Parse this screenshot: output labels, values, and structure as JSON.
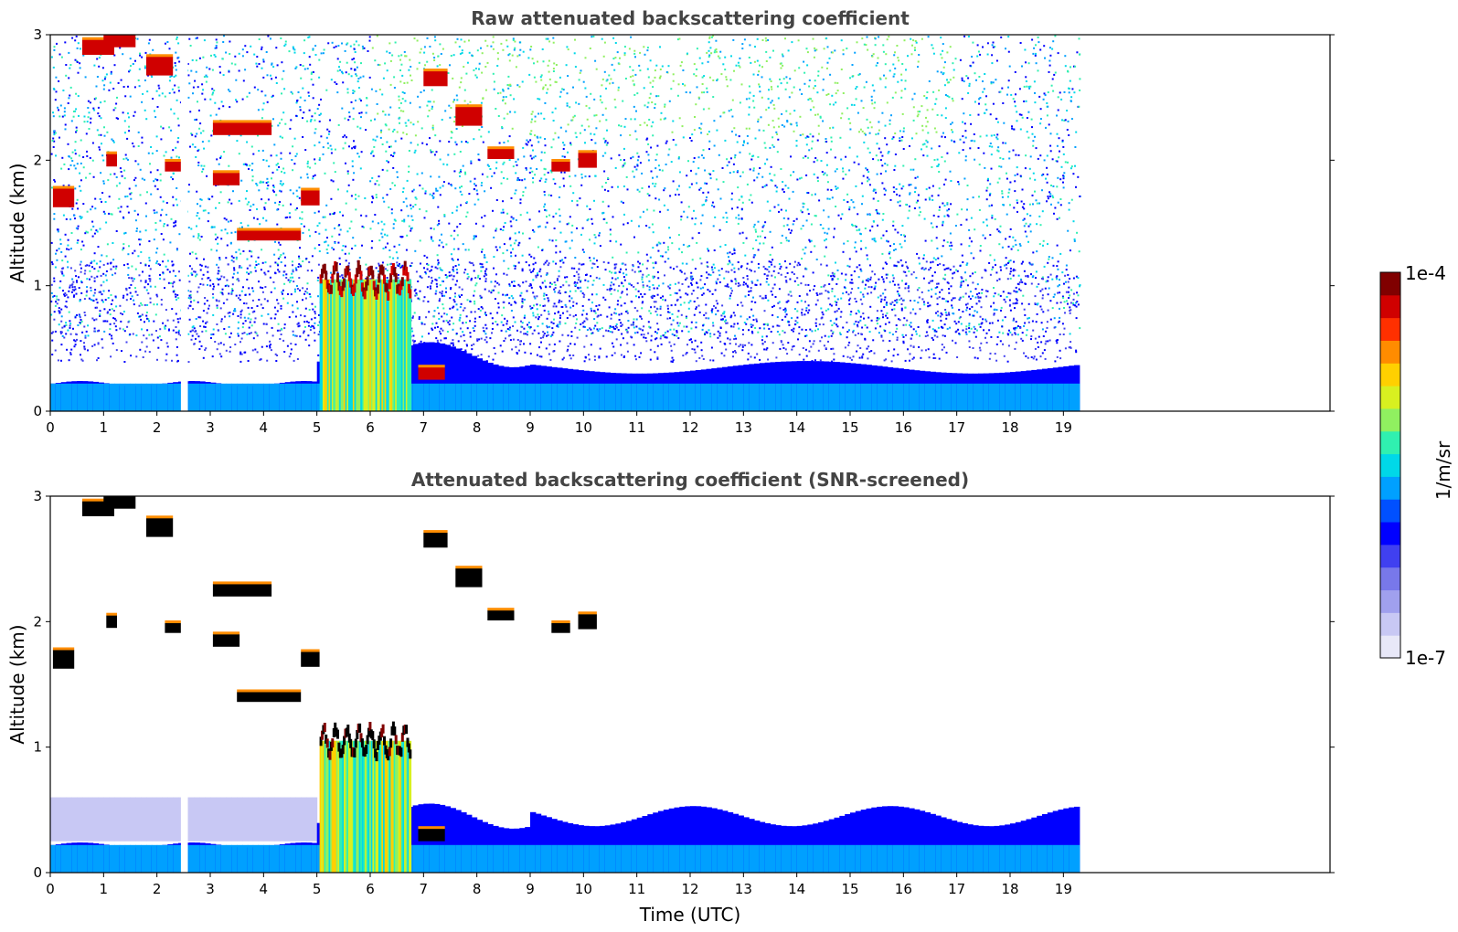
{
  "chart_data": [
    {
      "type": "heatmap",
      "title": "Raw attenuated backscattering coefficient",
      "ylabel": "Altitude (km)",
      "xlabel": "",
      "xlim": [
        0,
        24
      ],
      "ylim": [
        0,
        3
      ],
      "x_ticks": [
        "0",
        "1",
        "2",
        "3",
        "4",
        "5",
        "6",
        "7",
        "8",
        "9",
        "10",
        "11",
        "12",
        "13",
        "14",
        "15",
        "16",
        "17",
        "18",
        "19"
      ],
      "y_ticks": [
        "0",
        "1",
        "2",
        "3"
      ],
      "data_extent_hours": [
        0,
        19.3
      ],
      "gap_hours": [
        2.45,
        2.58
      ],
      "features": [
        {
          "name": "boundary_layer",
          "x": [
            0,
            19.3
          ],
          "y_top_km": [
            0.2,
            0.45
          ]
        },
        {
          "name": "dense_low_cloud",
          "x": [
            5.05,
            6.75
          ],
          "y": [
            0,
            1.15
          ],
          "top_layer_km": [
            0.95,
            1.2
          ]
        },
        {
          "name": "cloud_layers",
          "x": [
            0,
            10.1
          ],
          "y": [
            1.3,
            3.0
          ]
        }
      ]
    },
    {
      "type": "heatmap",
      "title": "Attenuated backscattering coefficient (SNR-screened)",
      "ylabel": "Altitude (km)",
      "xlabel": "Time (UTC)",
      "xlim": [
        0,
        24
      ],
      "ylim": [
        0,
        3
      ],
      "x_ticks": [
        "0",
        "1",
        "2",
        "3",
        "4",
        "5",
        "6",
        "7",
        "8",
        "9",
        "10",
        "11",
        "12",
        "13",
        "14",
        "15",
        "16",
        "17",
        "18",
        "19"
      ],
      "y_ticks": [
        "0",
        "1",
        "2",
        "3"
      ],
      "data_extent_hours": [
        0,
        19.3
      ],
      "gap_hours": [
        2.45,
        2.58
      ],
      "features": [
        {
          "name": "boundary_layer",
          "x": [
            0,
            19.3
          ],
          "y_top_km": [
            0.2,
            0.6
          ]
        },
        {
          "name": "dense_low_cloud",
          "x": [
            5.05,
            6.75
          ],
          "y": [
            0,
            1.2
          ]
        },
        {
          "name": "cloud_layers",
          "x": [
            0,
            10.3
          ],
          "y": [
            1.3,
            3.0
          ]
        }
      ]
    }
  ],
  "colorbar": {
    "label": "1/m/sr",
    "max_label": "1e-4",
    "min_label": "1e-7",
    "colors": [
      "#e8e8f8",
      "#c8c8f4",
      "#a0a0ee",
      "#7878ea",
      "#4040f0",
      "#0000ff",
      "#0050ff",
      "#00a0ff",
      "#00d8e8",
      "#30f0b0",
      "#90f060",
      "#d8f020",
      "#ffd000",
      "#ff8c00",
      "#ff3000",
      "#d00000",
      "#800000"
    ]
  }
}
